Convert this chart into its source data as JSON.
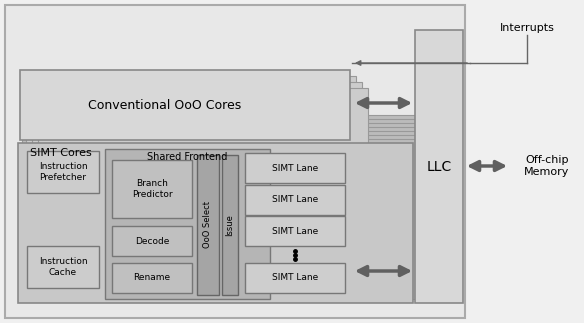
{
  "bg_color": "#f0f0f0",
  "card_light": "#e0e0e0",
  "card_mid": "#d0d0d0",
  "card_dark": "#c0c0c0",
  "ooo_fc": "#d8d8d8",
  "simt_outer_fc": "#c8c8c8",
  "simt_inner_fc": "#d0d0d0",
  "shared_fe_fc": "#b8b8b8",
  "subblock_fc": "#c0c0c0",
  "lane_fc": "#d0d0d0",
  "vertical_fc": "#a8a8a8",
  "llc_fc": "#d5d5d5",
  "ec_dark": "#888888",
  "ec_med": "#777777",
  "ec_light": "#999999",
  "arrow_fc": "#707070",
  "ooo_label": "Conventional OoO Cores",
  "simt_cores_label": "SIMT Cores",
  "shared_fe_label": "Shared Frontend",
  "instr_prefetch_label": "Instruction\nPrefetcher",
  "instr_cache_label": "Instruction\nCache",
  "branch_pred_label": "Branch\nPredictor",
  "decode_label": "Decode",
  "rename_label": "Rename",
  "ooo_select_label": "OoO Select",
  "issue_label": "Issue",
  "simt_lane_label": "SIMT Lane",
  "llc_label": "LLC",
  "interrupts_label": "Interrupts",
  "offchip_label": "Off-chip\nMemory"
}
